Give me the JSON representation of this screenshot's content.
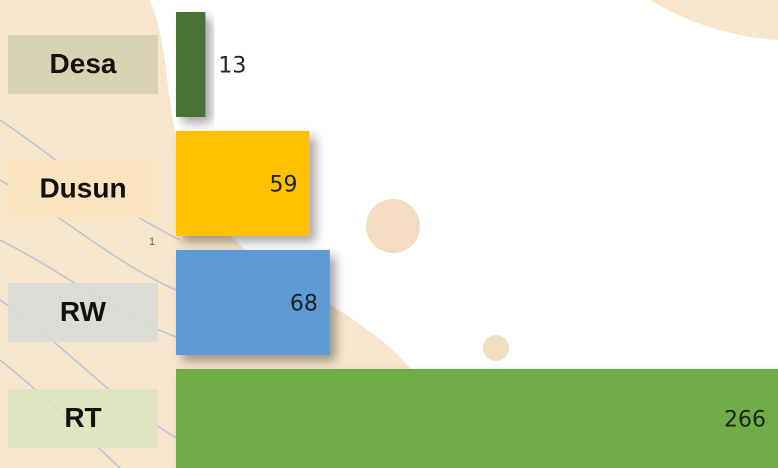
{
  "chart_data": {
    "type": "bar",
    "orientation": "horizontal",
    "categories": [
      "Desa",
      "Dusun",
      "RW",
      "RT"
    ],
    "values": [
      13,
      59,
      68,
      266
    ],
    "colors": [
      "#4a7131",
      "#ffc000",
      "#5b9bd5",
      "#70ad47"
    ],
    "annotation": "1"
  }
}
